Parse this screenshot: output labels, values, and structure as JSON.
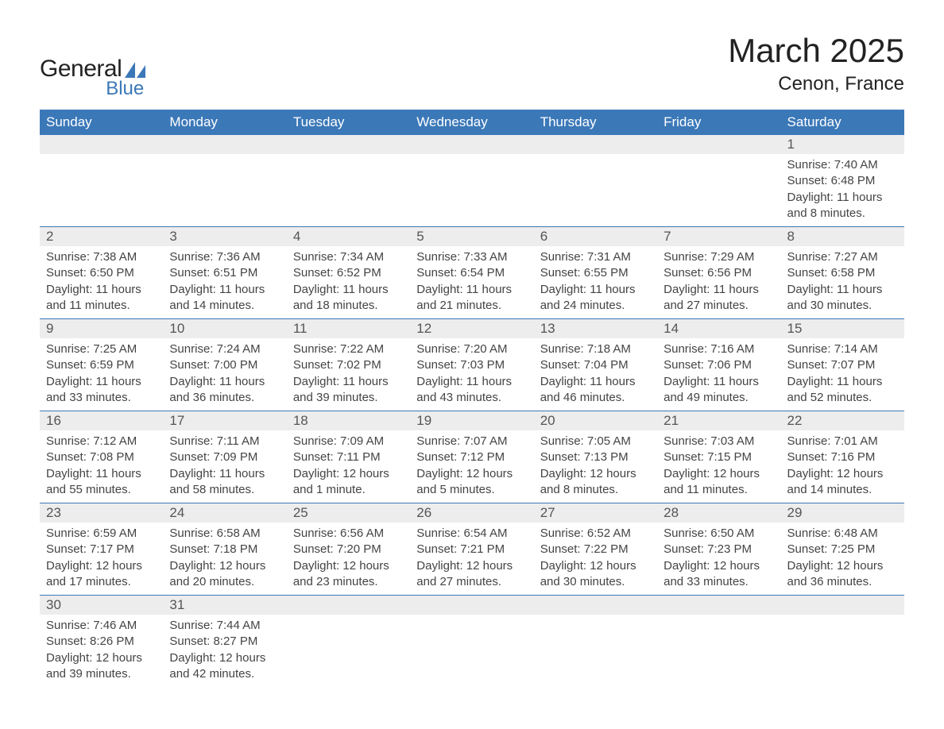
{
  "logo": {
    "text_general": "General",
    "text_blue": "Blue",
    "shape_color": "#3b78b8"
  },
  "title": "March 2025",
  "location": "Cenon, France",
  "colors": {
    "header_bg": "#3b78b8",
    "header_text": "#ffffff",
    "daynum_bg": "#ededed",
    "daynum_text": "#555555",
    "body_text": "#444444",
    "row_divider": "#3b78b8",
    "page_bg": "#ffffff"
  },
  "typography": {
    "title_fontsize": 42,
    "location_fontsize": 24,
    "dayheader_fontsize": 17,
    "daynum_fontsize": 17,
    "body_fontsize": 15,
    "font_family": "Arial"
  },
  "day_headers": [
    "Sunday",
    "Monday",
    "Tuesday",
    "Wednesday",
    "Thursday",
    "Friday",
    "Saturday"
  ],
  "weeks": [
    [
      null,
      null,
      null,
      null,
      null,
      null,
      {
        "n": "1",
        "sr": "Sunrise: 7:40 AM",
        "ss": "Sunset: 6:48 PM",
        "d1": "Daylight: 11 hours",
        "d2": "and 8 minutes."
      }
    ],
    [
      {
        "n": "2",
        "sr": "Sunrise: 7:38 AM",
        "ss": "Sunset: 6:50 PM",
        "d1": "Daylight: 11 hours",
        "d2": "and 11 minutes."
      },
      {
        "n": "3",
        "sr": "Sunrise: 7:36 AM",
        "ss": "Sunset: 6:51 PM",
        "d1": "Daylight: 11 hours",
        "d2": "and 14 minutes."
      },
      {
        "n": "4",
        "sr": "Sunrise: 7:34 AM",
        "ss": "Sunset: 6:52 PM",
        "d1": "Daylight: 11 hours",
        "d2": "and 18 minutes."
      },
      {
        "n": "5",
        "sr": "Sunrise: 7:33 AM",
        "ss": "Sunset: 6:54 PM",
        "d1": "Daylight: 11 hours",
        "d2": "and 21 minutes."
      },
      {
        "n": "6",
        "sr": "Sunrise: 7:31 AM",
        "ss": "Sunset: 6:55 PM",
        "d1": "Daylight: 11 hours",
        "d2": "and 24 minutes."
      },
      {
        "n": "7",
        "sr": "Sunrise: 7:29 AM",
        "ss": "Sunset: 6:56 PM",
        "d1": "Daylight: 11 hours",
        "d2": "and 27 minutes."
      },
      {
        "n": "8",
        "sr": "Sunrise: 7:27 AM",
        "ss": "Sunset: 6:58 PM",
        "d1": "Daylight: 11 hours",
        "d2": "and 30 minutes."
      }
    ],
    [
      {
        "n": "9",
        "sr": "Sunrise: 7:25 AM",
        "ss": "Sunset: 6:59 PM",
        "d1": "Daylight: 11 hours",
        "d2": "and 33 minutes."
      },
      {
        "n": "10",
        "sr": "Sunrise: 7:24 AM",
        "ss": "Sunset: 7:00 PM",
        "d1": "Daylight: 11 hours",
        "d2": "and 36 minutes."
      },
      {
        "n": "11",
        "sr": "Sunrise: 7:22 AM",
        "ss": "Sunset: 7:02 PM",
        "d1": "Daylight: 11 hours",
        "d2": "and 39 minutes."
      },
      {
        "n": "12",
        "sr": "Sunrise: 7:20 AM",
        "ss": "Sunset: 7:03 PM",
        "d1": "Daylight: 11 hours",
        "d2": "and 43 minutes."
      },
      {
        "n": "13",
        "sr": "Sunrise: 7:18 AM",
        "ss": "Sunset: 7:04 PM",
        "d1": "Daylight: 11 hours",
        "d2": "and 46 minutes."
      },
      {
        "n": "14",
        "sr": "Sunrise: 7:16 AM",
        "ss": "Sunset: 7:06 PM",
        "d1": "Daylight: 11 hours",
        "d2": "and 49 minutes."
      },
      {
        "n": "15",
        "sr": "Sunrise: 7:14 AM",
        "ss": "Sunset: 7:07 PM",
        "d1": "Daylight: 11 hours",
        "d2": "and 52 minutes."
      }
    ],
    [
      {
        "n": "16",
        "sr": "Sunrise: 7:12 AM",
        "ss": "Sunset: 7:08 PM",
        "d1": "Daylight: 11 hours",
        "d2": "and 55 minutes."
      },
      {
        "n": "17",
        "sr": "Sunrise: 7:11 AM",
        "ss": "Sunset: 7:09 PM",
        "d1": "Daylight: 11 hours",
        "d2": "and 58 minutes."
      },
      {
        "n": "18",
        "sr": "Sunrise: 7:09 AM",
        "ss": "Sunset: 7:11 PM",
        "d1": "Daylight: 12 hours",
        "d2": "and 1 minute."
      },
      {
        "n": "19",
        "sr": "Sunrise: 7:07 AM",
        "ss": "Sunset: 7:12 PM",
        "d1": "Daylight: 12 hours",
        "d2": "and 5 minutes."
      },
      {
        "n": "20",
        "sr": "Sunrise: 7:05 AM",
        "ss": "Sunset: 7:13 PM",
        "d1": "Daylight: 12 hours",
        "d2": "and 8 minutes."
      },
      {
        "n": "21",
        "sr": "Sunrise: 7:03 AM",
        "ss": "Sunset: 7:15 PM",
        "d1": "Daylight: 12 hours",
        "d2": "and 11 minutes."
      },
      {
        "n": "22",
        "sr": "Sunrise: 7:01 AM",
        "ss": "Sunset: 7:16 PM",
        "d1": "Daylight: 12 hours",
        "d2": "and 14 minutes."
      }
    ],
    [
      {
        "n": "23",
        "sr": "Sunrise: 6:59 AM",
        "ss": "Sunset: 7:17 PM",
        "d1": "Daylight: 12 hours",
        "d2": "and 17 minutes."
      },
      {
        "n": "24",
        "sr": "Sunrise: 6:58 AM",
        "ss": "Sunset: 7:18 PM",
        "d1": "Daylight: 12 hours",
        "d2": "and 20 minutes."
      },
      {
        "n": "25",
        "sr": "Sunrise: 6:56 AM",
        "ss": "Sunset: 7:20 PM",
        "d1": "Daylight: 12 hours",
        "d2": "and 23 minutes."
      },
      {
        "n": "26",
        "sr": "Sunrise: 6:54 AM",
        "ss": "Sunset: 7:21 PM",
        "d1": "Daylight: 12 hours",
        "d2": "and 27 minutes."
      },
      {
        "n": "27",
        "sr": "Sunrise: 6:52 AM",
        "ss": "Sunset: 7:22 PM",
        "d1": "Daylight: 12 hours",
        "d2": "and 30 minutes."
      },
      {
        "n": "28",
        "sr": "Sunrise: 6:50 AM",
        "ss": "Sunset: 7:23 PM",
        "d1": "Daylight: 12 hours",
        "d2": "and 33 minutes."
      },
      {
        "n": "29",
        "sr": "Sunrise: 6:48 AM",
        "ss": "Sunset: 7:25 PM",
        "d1": "Daylight: 12 hours",
        "d2": "and 36 minutes."
      }
    ],
    [
      {
        "n": "30",
        "sr": "Sunrise: 7:46 AM",
        "ss": "Sunset: 8:26 PM",
        "d1": "Daylight: 12 hours",
        "d2": "and 39 minutes."
      },
      {
        "n": "31",
        "sr": "Sunrise: 7:44 AM",
        "ss": "Sunset: 8:27 PM",
        "d1": "Daylight: 12 hours",
        "d2": "and 42 minutes."
      },
      null,
      null,
      null,
      null,
      null
    ]
  ]
}
